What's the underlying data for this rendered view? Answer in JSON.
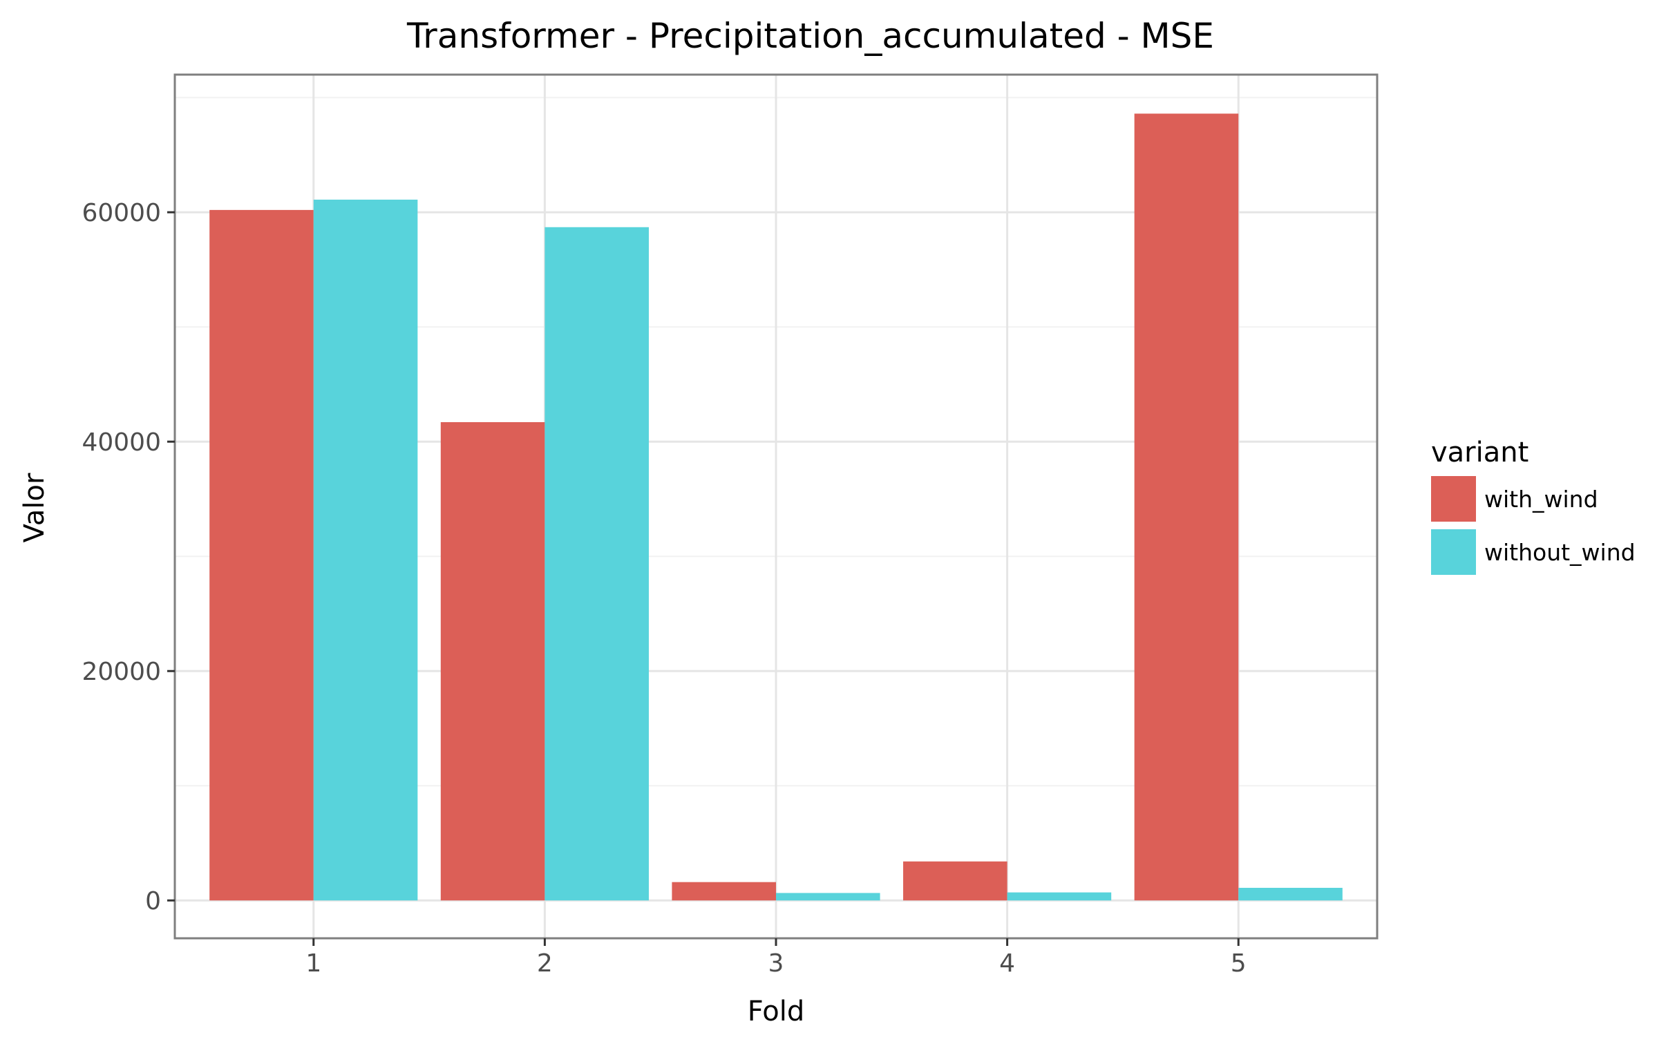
{
  "chart_data": {
    "type": "bar",
    "title": "Transformer - Precipitation_accumulated - MSE",
    "xlabel": "Fold",
    "ylabel": "Valor",
    "categories": [
      "1",
      "2",
      "3",
      "4",
      "5"
    ],
    "series": [
      {
        "name": "with_wind",
        "color": "#dc5f57",
        "values": [
          60200,
          41700,
          1600,
          3400,
          68600
        ]
      },
      {
        "name": "without_wind",
        "color": "#58d3db",
        "values": [
          61100,
          58700,
          650,
          700,
          1100
        ]
      }
    ],
    "yticks": [
      0,
      20000,
      40000,
      60000
    ],
    "ylim": [
      -3300,
      72000
    ],
    "grid": true,
    "legend": {
      "title": "variant",
      "position": "right"
    }
  }
}
